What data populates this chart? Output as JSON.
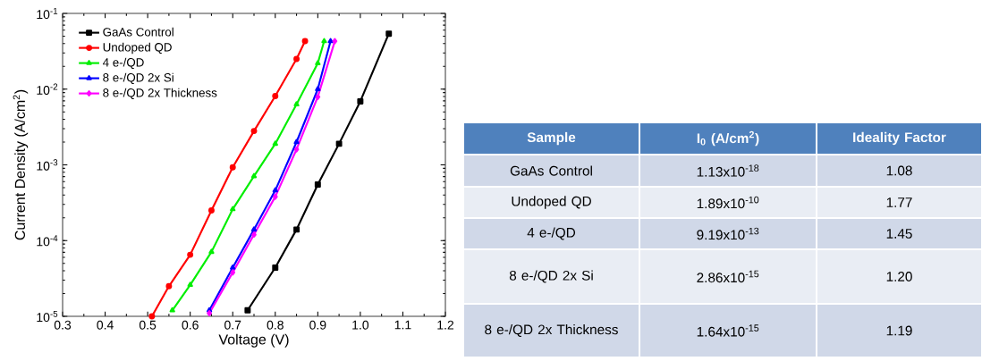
{
  "chart_data": [
    {
      "type": "line",
      "xlabel": "Voltage (V)",
      "ylabel": "Current Density (A/cm$^{2}$)",
      "log": "y",
      "xlim": [
        0.3,
        1.2
      ],
      "ylim": [
        1e-05,
        0.1
      ],
      "xticks": [
        0.3,
        0.4,
        0.5,
        0.6,
        0.7,
        0.8,
        0.9,
        {
          "value": 1.0,
          "label": "1.0"
        },
        1.1,
        1.2
      ],
      "yticks": [
        {
          "value": 1e-05,
          "label": "10$^{-5}$"
        },
        {
          "value": 0.0001,
          "label": "10$^{-4}$"
        },
        {
          "value": 0.001,
          "label": "10$^{-3}$"
        },
        {
          "value": 0.01,
          "label": "10$^{-2}$"
        },
        {
          "value": 0.1,
          "label": "10$^{-1}$"
        }
      ],
      "legend": "top left",
      "grid": false,
      "series": [
        {
          "name": "GaAs Control",
          "color": "#000000",
          "marker": "square",
          "x": [
            0.735,
            0.8,
            0.85,
            0.9,
            0.95,
            1.0,
            1.067
          ],
          "values": [
            1.2e-05,
            4.4e-05,
            0.00014,
            0.00055,
            0.0019,
            0.0069,
            0.054
          ]
        },
        {
          "name": "Undoped QD",
          "color": "#ff0000",
          "marker": "circle",
          "x": [
            0.51,
            0.55,
            0.6,
            0.65,
            0.7,
            0.75,
            0.8,
            0.85,
            0.87
          ],
          "values": [
            1e-05,
            2.5e-05,
            6.5e-05,
            0.00025,
            0.00093,
            0.0028,
            0.0081,
            0.025,
            0.043
          ]
        },
        {
          "name": "4 e-/QD",
          "color": "#00ee00",
          "marker": "triangle",
          "x": [
            0.558,
            0.6,
            0.65,
            0.7,
            0.75,
            0.8,
            0.85,
            0.9,
            0.915
          ],
          "values": [
            1.2e-05,
            2.6e-05,
            7.1e-05,
            0.00026,
            0.00071,
            0.0019,
            0.0063,
            0.022,
            0.043
          ]
        },
        {
          "name": "8 e-/QD 2x Si",
          "color": "#0000ff",
          "marker": "triangle",
          "x": [
            0.645,
            0.7,
            0.75,
            0.8,
            0.85,
            0.9,
            0.93
          ],
          "values": [
            1.2e-05,
            4.4e-05,
            0.00014,
            0.00046,
            0.002,
            0.01,
            0.043
          ]
        },
        {
          "name": "8 e-/QD 2x Thickness",
          "color": "#ff00ff",
          "marker": "diamond",
          "x": [
            0.645,
            0.7,
            0.75,
            0.8,
            0.85,
            0.9,
            0.94
          ],
          "values": [
            1.1e-05,
            3.8e-05,
            0.00012,
            0.00038,
            0.0016,
            0.0079,
            0.043
          ]
        }
      ]
    },
    {
      "type": "other",
      "annotations": [
        "Sample",
        "I$_{0}$ (A/cm$^{2}$)",
        "Ideality Factor",
        "GaAs Control",
        "1.13x10$^{-18}$",
        "1.08",
        "Undoped QD",
        "1.89x10$^{-10}$",
        "1.77",
        "4 e-/QD",
        "9.19x10$^{-13}$",
        "1.45",
        "8 e-/QD 2x Si",
        "2.86x10$^{-15}$",
        "1.20",
        "8 e-/QD 2x Thickness",
        "1.64x10$^{-15}$",
        "1.19"
      ]
    }
  ]
}
